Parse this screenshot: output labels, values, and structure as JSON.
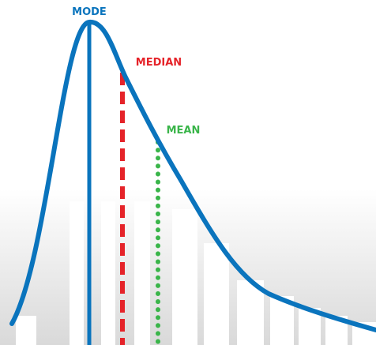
{
  "labels": {
    "mode": "MODE",
    "median": "MEDIAN",
    "mean": "MEAN"
  }
}
